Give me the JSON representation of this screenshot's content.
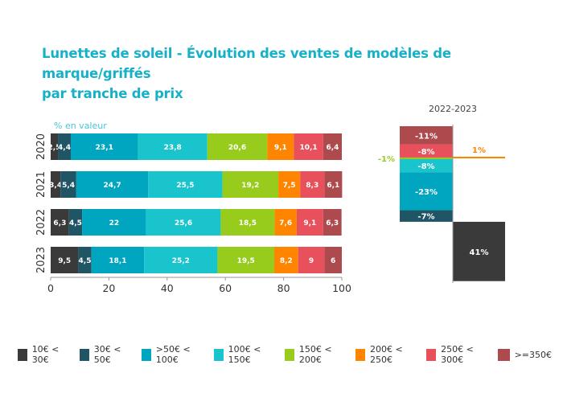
{
  "title_line1": "Lunettes de soleil - Évolution des ventes de modèles de marque/griffés",
  "title_line2": "par tranche de prix",
  "chart_data": [
    {
      "type": "bar",
      "orientation": "horizontal-stacked",
      "ylabel": "% en valeur",
      "categories": [
        "2020",
        "2021",
        "2022",
        "2023"
      ],
      "xlim": [
        0,
        100
      ],
      "xticks": [
        "0",
        "20",
        "40",
        "60",
        "80",
        "100"
      ],
      "series": [
        {
          "name": "10€ < 30€",
          "color": "#3a3a3a",
          "values": [
            2.5,
            3.4,
            6.3,
            9.5
          ],
          "labels": [
            "2,5",
            "3,4",
            "6,3",
            "9,5"
          ]
        },
        {
          "name": "30€ < 50€",
          "color": "#205566",
          "values": [
            4.4,
            5.4,
            4.5,
            4.5
          ],
          "labels": [
            "4,4",
            "5,4",
            "4,5",
            "4,5"
          ]
        },
        {
          "name": ">50€ < 100€",
          "color": "#00a6bf",
          "values": [
            23.1,
            24.7,
            22,
            18.1
          ],
          "labels": [
            "23,1",
            "24,7",
            "22",
            "18,1"
          ]
        },
        {
          "name": "100€ < 150€",
          "color": "#1ac4cc",
          "values": [
            23.8,
            25.5,
            25.6,
            25.2
          ],
          "labels": [
            "23,8",
            "25,5",
            "25,6",
            "25,2"
          ]
        },
        {
          "name": "150€ < 200€",
          "color": "#98cc1c",
          "values": [
            20.6,
            19.2,
            18.5,
            19.5
          ],
          "labels": [
            "20,6",
            "19,2",
            "18,5",
            "19,5"
          ]
        },
        {
          "name": "200€ < 250€",
          "color": "#ff8500",
          "values": [
            9.1,
            7.5,
            7.6,
            8.2
          ],
          "labels": [
            "9,1",
            "7,5",
            "7,6",
            "8,2"
          ]
        },
        {
          "name": "250€ < 300€",
          "color": "#e8505b",
          "values": [
            10.1,
            8.3,
            9.1,
            9
          ],
          "labels": [
            "10,1",
            "8,3",
            "9,1",
            "9"
          ]
        },
        {
          "name": ">=350€",
          "color": "#ad4a4e",
          "values": [
            6.4,
            6.1,
            6.3,
            6
          ],
          "labels": [
            "6,4",
            "6,1",
            "6,3",
            "6"
          ]
        }
      ],
      "legend": "bottom"
    },
    {
      "type": "bar",
      "orientation": "waterfall",
      "title": "2022-2023",
      "segments": [
        {
          "series": ">=350€",
          "value": -11,
          "label": "-11%"
        },
        {
          "series": "250€ < 300€",
          "value": -8,
          "label": "-8%"
        },
        {
          "series": "200€ < 250€",
          "value": 1,
          "label": "1%"
        },
        {
          "series": "150€ < 200€",
          "value": -1,
          "label": "-1%"
        },
        {
          "series": "100€ < 150€",
          "value": -8,
          "label": "-8%"
        },
        {
          "series": ">50€ < 100€",
          "value": -23,
          "label": "-23%"
        },
        {
          "series": "30€ < 50€",
          "value": -7,
          "label": "-7%"
        },
        {
          "series": "10€ < 30€",
          "value": 41,
          "label": "41%"
        }
      ]
    }
  ]
}
